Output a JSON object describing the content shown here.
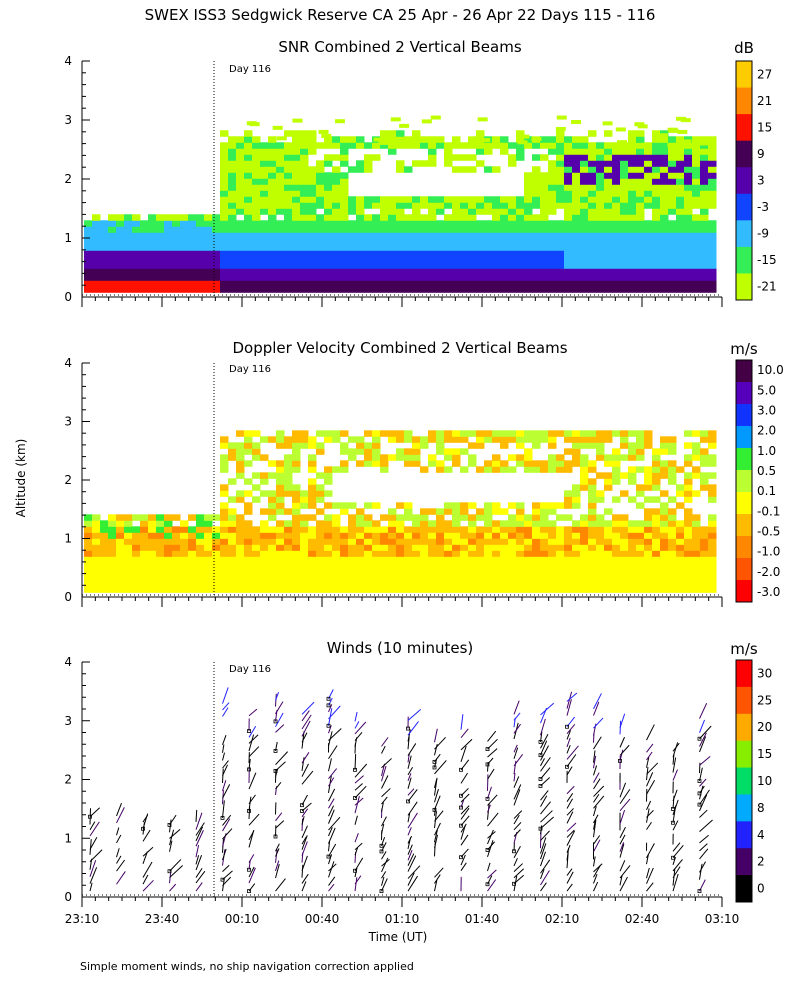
{
  "title": "SWEX ISS3 Sedgwick Reserve CA  25 Apr - 26 Apr 22 Days 115 - 116",
  "footer_note": "Simple moment winds, no ship navigation correction applied",
  "ylabel": "Altitude (km)",
  "xlabel": "Time (UT)",
  "x_ticks": [
    "23:10",
    "23:40",
    "00:10",
    "00:40",
    "01:10",
    "01:40",
    "02:10",
    "02:40",
    "03:10"
  ],
  "day_marker": {
    "label": "Day 116",
    "time": "00:00"
  },
  "colors": {
    "snr": [
      "#bfff00",
      "#33ee55",
      "#33bbff",
      "#1144ff",
      "#5500aa",
      "#440055",
      "#ff1100",
      "#ff8800",
      "#ffcc00"
    ],
    "vel": [
      "#ff0000",
      "#ff5500",
      "#ff8800",
      "#ffbb00",
      "#ffff00",
      "#bbff33",
      "#33ee33",
      "#0099ff",
      "#1133ff",
      "#5500bb",
      "#440044"
    ],
    "wind": [
      "#000000",
      "#440066",
      "#2222ff",
      "#00aaff",
      "#00dd66",
      "#88ee00",
      "#ffaa00",
      "#ff5500",
      "#ff0000"
    ]
  },
  "chart_data": [
    {
      "type": "heatmap",
      "title": "SNR Combined 2 Vertical Beams",
      "ylim": [
        0,
        4
      ],
      "y_ticks": [
        "0",
        "1",
        "2",
        "3",
        "4"
      ],
      "colorbar_unit": "dB",
      "colorbar_labels": [
        "27",
        "21",
        "15",
        "9",
        "3",
        "-3",
        "-9",
        "-15",
        "-21"
      ]
    },
    {
      "type": "heatmap",
      "title": "Doppler Velocity Combined 2 Vertical Beams",
      "ylim": [
        0,
        4
      ],
      "y_ticks": [
        "0",
        "1",
        "2",
        "3",
        "4"
      ],
      "colorbar_unit": "m/s",
      "colorbar_labels": [
        "10.0",
        "5.0",
        "3.0",
        "2.0",
        "1.0",
        "0.5",
        "0.1",
        "-0.1",
        "-0.5",
        "-1.0",
        "-2.0",
        "-3.0"
      ]
    },
    {
      "type": "scatter",
      "title": "Winds (10 minutes)",
      "ylim": [
        0,
        4
      ],
      "y_ticks": [
        "0",
        "1",
        "2",
        "3",
        "4"
      ],
      "colorbar_unit": "m/s",
      "colorbar_labels": [
        "30",
        "25",
        "20",
        "15",
        "10",
        "8",
        "4",
        "2",
        "0"
      ]
    }
  ]
}
